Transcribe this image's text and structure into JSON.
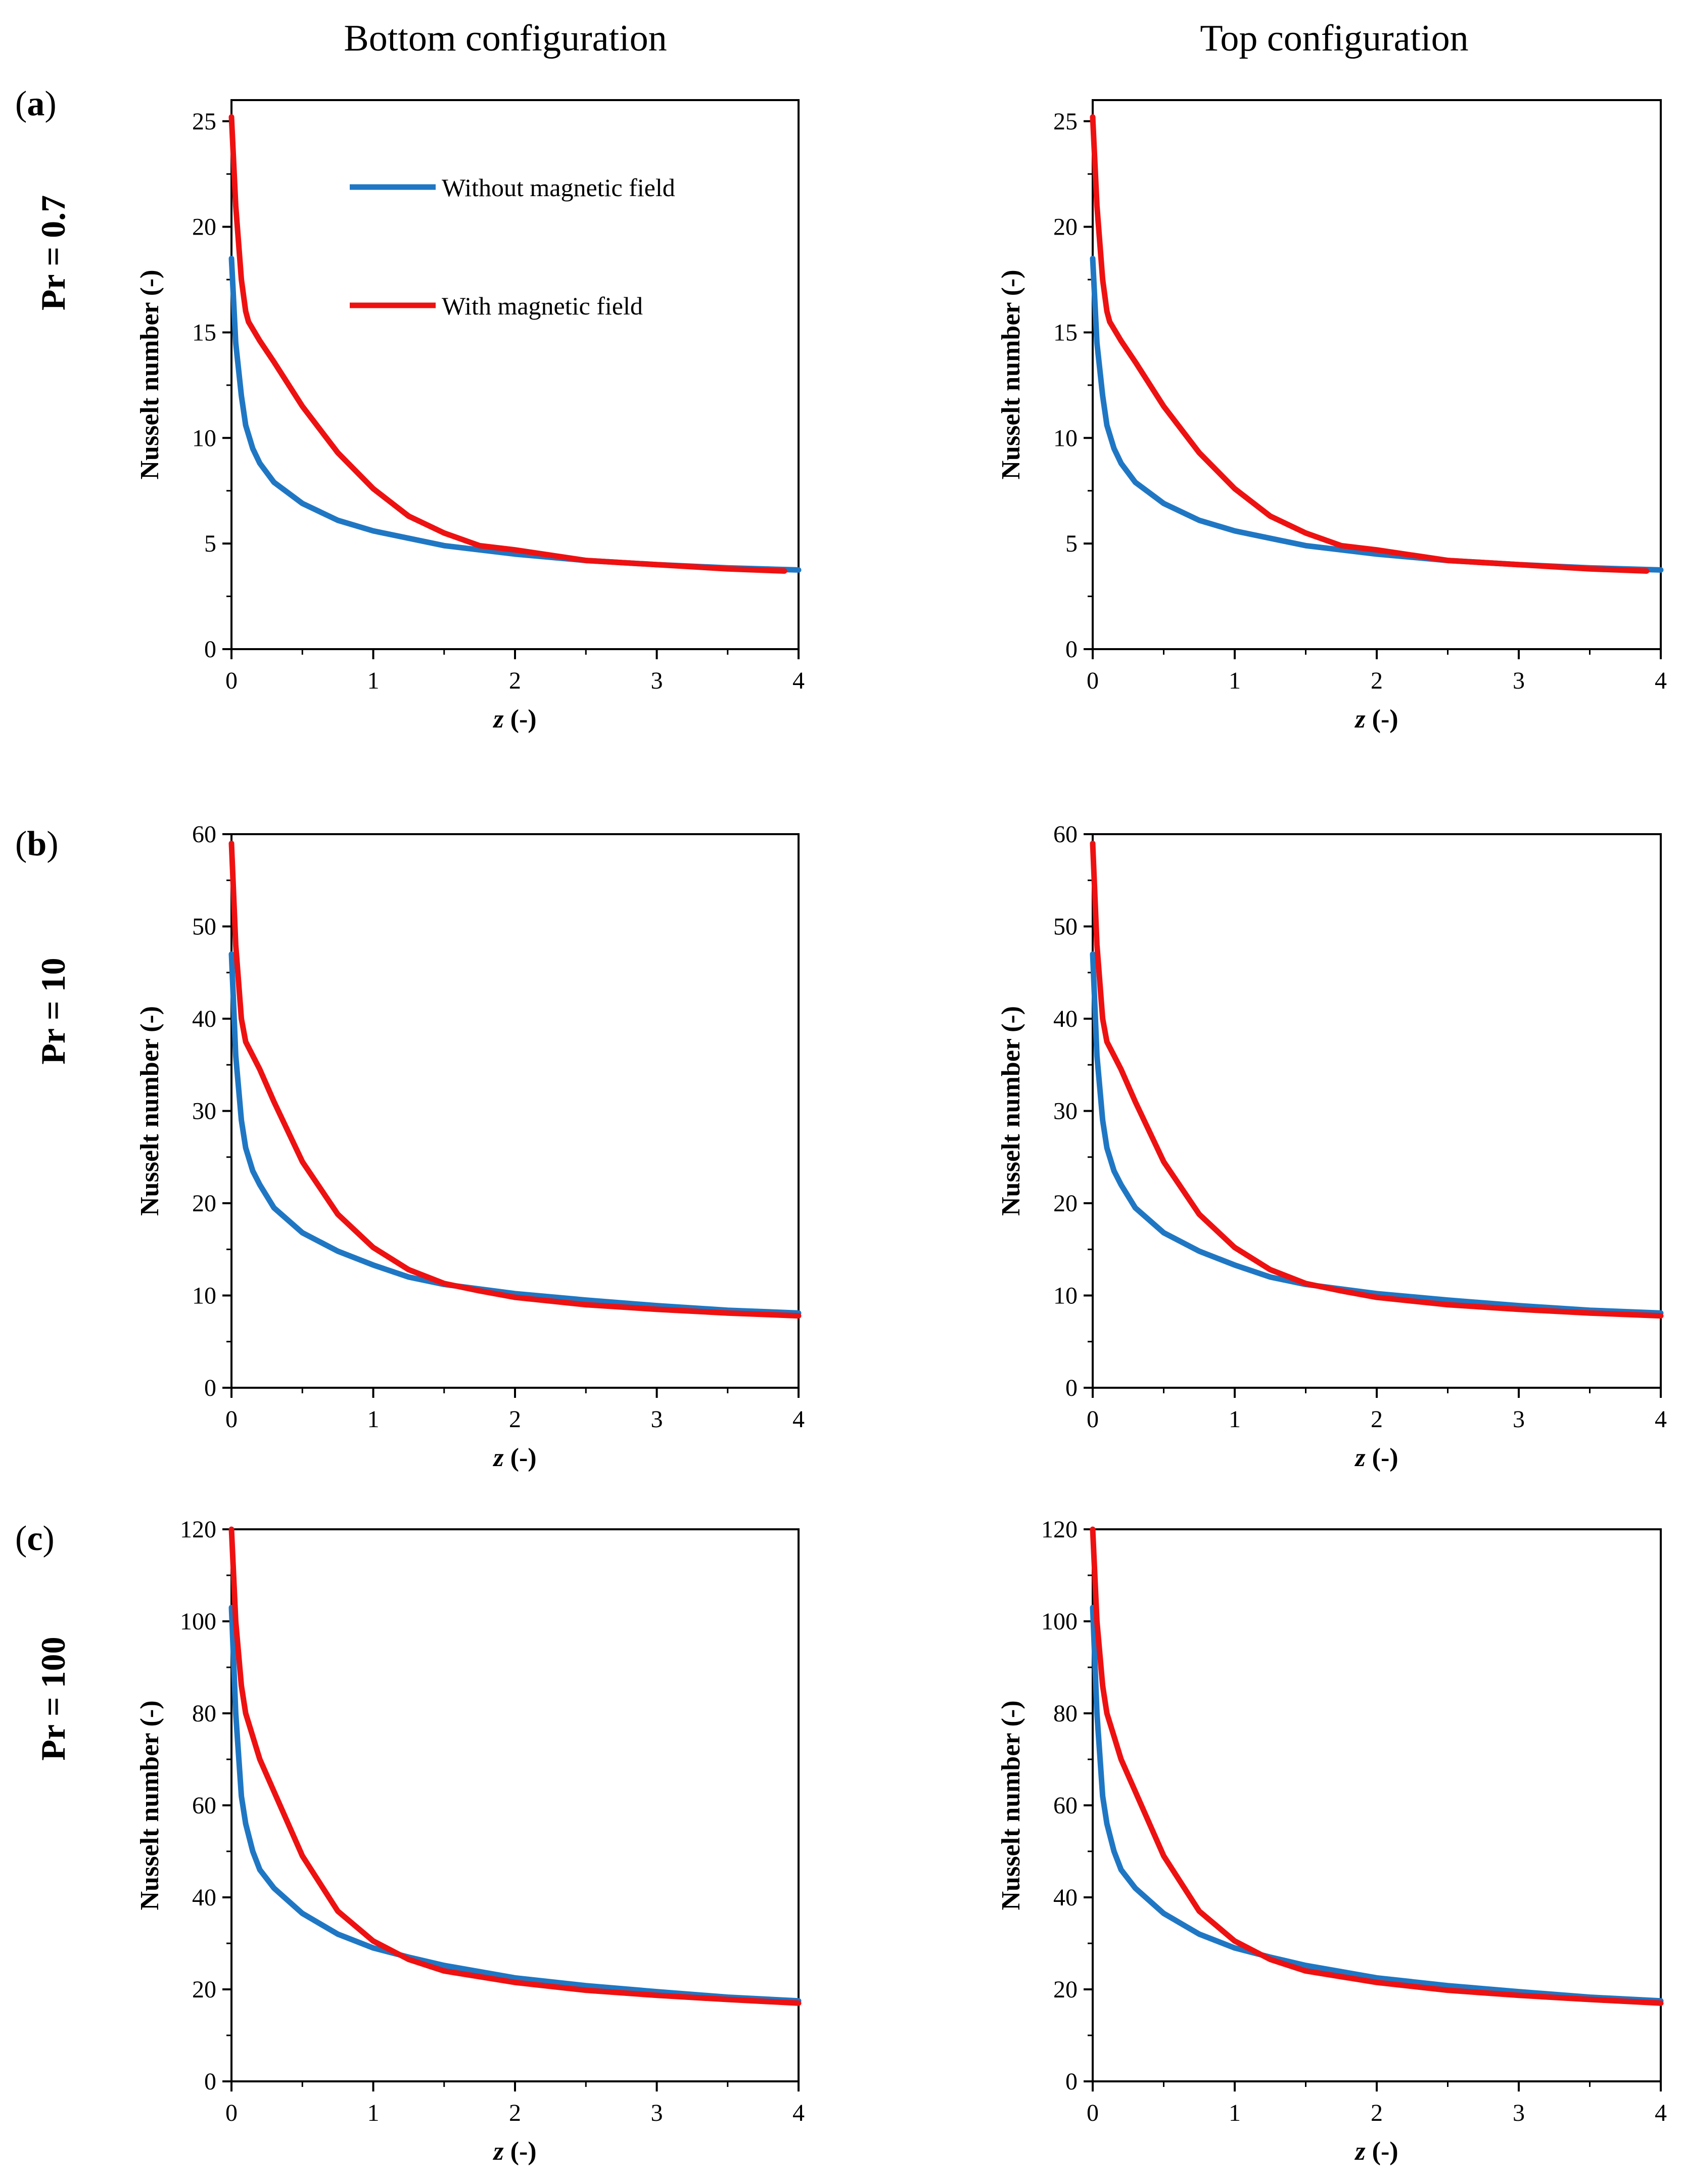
{
  "figure": {
    "column_titles": [
      "Bottom configuration",
      "Top configuration"
    ],
    "rows": [
      {
        "label": "(",
        "label_letter": "a",
        "label_close": ")",
        "pr_label": "Pr = 0.7"
      },
      {
        "label": "(",
        "label_letter": "b",
        "label_close": ")",
        "pr_label": "Pr = 10"
      },
      {
        "label": "(",
        "label_letter": "c",
        "label_close": ")",
        "pr_label": "Pr = 100"
      }
    ],
    "xlabel_italic": "z",
    "xlabel_rest": " (-)",
    "ylabel": "Nusselt number (-)",
    "legend": [
      "Without magnetic field",
      "With magnetic field"
    ]
  },
  "colors": {
    "without": "#1f77c4",
    "with": "#ee1111",
    "axis": "#000000"
  },
  "chart_data": [
    {
      "type": "line",
      "row": 0,
      "col": 0,
      "panel": "(a)",
      "title": "Bottom configuration",
      "pr": "Pr = 0.7",
      "xlabel": "z (-)",
      "ylabel": "Nusselt number (-)",
      "xlim": [
        0,
        4
      ],
      "ylim": [
        0,
        26
      ],
      "xticks": [
        0,
        1,
        2,
        3,
        4
      ],
      "yticks": [
        0,
        5,
        10,
        15,
        20,
        25
      ],
      "yminor": 2.5,
      "xminor": 0.5,
      "series": [
        {
          "name": "Without magnetic field",
          "color_key": "without",
          "x": [
            0,
            0.03,
            0.07,
            0.1,
            0.15,
            0.2,
            0.3,
            0.5,
            0.75,
            1.0,
            1.5,
            2.0,
            2.5,
            3.0,
            3.5,
            4.0
          ],
          "y": [
            18.5,
            14.5,
            12.0,
            10.6,
            9.5,
            8.8,
            7.9,
            6.9,
            6.1,
            5.6,
            4.9,
            4.5,
            4.2,
            4.0,
            3.85,
            3.75
          ]
        },
        {
          "name": "With magnetic field",
          "color_key": "with",
          "x": [
            0,
            0.03,
            0.07,
            0.1,
            0.12,
            0.2,
            0.3,
            0.5,
            0.75,
            1.0,
            1.25,
            1.5,
            1.75,
            2.0,
            2.5,
            3.0,
            3.5,
            3.9
          ],
          "y": [
            25.2,
            21.0,
            17.5,
            16.0,
            15.5,
            14.6,
            13.6,
            11.5,
            9.3,
            7.6,
            6.3,
            5.5,
            4.9,
            4.7,
            4.2,
            4.0,
            3.8,
            3.7
          ]
        }
      ]
    },
    {
      "type": "line",
      "row": 0,
      "col": 1,
      "panel": "(a)",
      "title": "Top configuration",
      "pr": "Pr = 0.7",
      "xlabel": "z (-)",
      "ylabel": "Nusselt number (-)",
      "xlim": [
        0,
        4
      ],
      "ylim": [
        0,
        26
      ],
      "xticks": [
        0,
        1,
        2,
        3,
        4
      ],
      "yticks": [
        0,
        5,
        10,
        15,
        20,
        25
      ],
      "yminor": 2.5,
      "xminor": 0.5,
      "series": [
        {
          "name": "Without magnetic field",
          "color_key": "without",
          "x": [
            0,
            0.03,
            0.07,
            0.1,
            0.15,
            0.2,
            0.3,
            0.5,
            0.75,
            1.0,
            1.5,
            2.0,
            2.5,
            3.0,
            3.5,
            4.0
          ],
          "y": [
            18.5,
            14.5,
            12.0,
            10.6,
            9.5,
            8.8,
            7.9,
            6.9,
            6.1,
            5.6,
            4.9,
            4.5,
            4.2,
            4.0,
            3.85,
            3.75
          ]
        },
        {
          "name": "With magnetic field",
          "color_key": "with",
          "x": [
            0,
            0.03,
            0.07,
            0.1,
            0.12,
            0.2,
            0.3,
            0.5,
            0.75,
            1.0,
            1.25,
            1.5,
            1.75,
            2.0,
            2.5,
            3.0,
            3.5,
            3.9
          ],
          "y": [
            25.2,
            21.0,
            17.5,
            16.0,
            15.5,
            14.6,
            13.6,
            11.5,
            9.3,
            7.6,
            6.3,
            5.5,
            4.9,
            4.7,
            4.2,
            4.0,
            3.8,
            3.7
          ]
        }
      ]
    },
    {
      "type": "line",
      "row": 1,
      "col": 0,
      "panel": "(b)",
      "title": "Bottom configuration",
      "pr": "Pr = 10",
      "xlabel": "z (-)",
      "ylabel": "Nusselt number (-)",
      "xlim": [
        0,
        4
      ],
      "ylim": [
        0,
        60
      ],
      "xticks": [
        0,
        1,
        2,
        3,
        4
      ],
      "yticks": [
        0,
        10,
        20,
        30,
        40,
        50,
        60
      ],
      "yminor": 5,
      "xminor": 0.5,
      "series": [
        {
          "name": "Without magnetic field",
          "color_key": "without",
          "x": [
            0,
            0.03,
            0.07,
            0.1,
            0.15,
            0.2,
            0.3,
            0.5,
            0.75,
            1.0,
            1.25,
            1.5,
            2.0,
            2.5,
            3.0,
            3.5,
            4.0
          ],
          "y": [
            47.0,
            36.0,
            29.0,
            26.0,
            23.5,
            22.0,
            19.5,
            16.8,
            14.8,
            13.3,
            12.0,
            11.2,
            10.2,
            9.5,
            8.9,
            8.4,
            8.1
          ]
        },
        {
          "name": "With magnetic field",
          "color_key": "with",
          "x": [
            0,
            0.03,
            0.07,
            0.1,
            0.15,
            0.2,
            0.3,
            0.5,
            0.75,
            1.0,
            1.25,
            1.5,
            1.75,
            2.0,
            2.5,
            3.0,
            3.5,
            4.0
          ],
          "y": [
            59.0,
            48.0,
            40.0,
            37.5,
            36.0,
            34.5,
            31.0,
            24.5,
            18.8,
            15.2,
            12.8,
            11.3,
            10.5,
            9.8,
            9.0,
            8.5,
            8.1,
            7.8
          ]
        }
      ]
    },
    {
      "type": "line",
      "row": 1,
      "col": 1,
      "panel": "(b)",
      "title": "Top configuration",
      "pr": "Pr = 10",
      "xlabel": "z (-)",
      "ylabel": "Nusselt number (-)",
      "xlim": [
        0,
        4
      ],
      "ylim": [
        0,
        60
      ],
      "xticks": [
        0,
        1,
        2,
        3,
        4
      ],
      "yticks": [
        0,
        10,
        20,
        30,
        40,
        50,
        60
      ],
      "yminor": 5,
      "xminor": 0.5,
      "series": [
        {
          "name": "Without magnetic field",
          "color_key": "without",
          "x": [
            0,
            0.03,
            0.07,
            0.1,
            0.15,
            0.2,
            0.3,
            0.5,
            0.75,
            1.0,
            1.25,
            1.5,
            2.0,
            2.5,
            3.0,
            3.5,
            4.0
          ],
          "y": [
            47.0,
            36.0,
            29.0,
            26.0,
            23.5,
            22.0,
            19.5,
            16.8,
            14.8,
            13.3,
            12.0,
            11.2,
            10.2,
            9.5,
            8.9,
            8.4,
            8.1
          ]
        },
        {
          "name": "With magnetic field",
          "color_key": "with",
          "x": [
            0,
            0.03,
            0.07,
            0.1,
            0.15,
            0.2,
            0.3,
            0.5,
            0.75,
            1.0,
            1.25,
            1.5,
            1.75,
            2.0,
            2.5,
            3.0,
            3.5,
            4.0
          ],
          "y": [
            59.0,
            48.0,
            40.0,
            37.5,
            36.0,
            34.5,
            31.0,
            24.5,
            18.8,
            15.2,
            12.8,
            11.3,
            10.5,
            9.8,
            9.0,
            8.5,
            8.1,
            7.8
          ]
        }
      ]
    },
    {
      "type": "line",
      "row": 2,
      "col": 0,
      "panel": "(c)",
      "title": "Bottom configuration",
      "pr": "Pr = 100",
      "xlabel": "z (-)",
      "ylabel": "Nusselt number (-)",
      "xlim": [
        0,
        4
      ],
      "ylim": [
        0,
        120
      ],
      "xticks": [
        0,
        1,
        2,
        3,
        4
      ],
      "yticks": [
        0,
        20,
        40,
        60,
        80,
        100,
        120
      ],
      "yminor": 10,
      "xminor": 0.5,
      "series": [
        {
          "name": "Without magnetic field",
          "color_key": "without",
          "x": [
            0,
            0.03,
            0.07,
            0.1,
            0.15,
            0.2,
            0.3,
            0.5,
            0.75,
            1.0,
            1.25,
            1.5,
            2.0,
            2.5,
            3.0,
            3.5,
            4.0
          ],
          "y": [
            103.0,
            80.0,
            62.0,
            56.0,
            50.0,
            46.0,
            42.0,
            36.5,
            32.0,
            29.0,
            27.0,
            25.2,
            22.5,
            20.8,
            19.5,
            18.3,
            17.5
          ]
        },
        {
          "name": "With magnetic field",
          "color_key": "with",
          "x": [
            0,
            0.03,
            0.07,
            0.1,
            0.15,
            0.2,
            0.3,
            0.5,
            0.75,
            1.0,
            1.25,
            1.5,
            2.0,
            2.5,
            3.0,
            3.5,
            4.0
          ],
          "y": [
            120.0,
            100.0,
            86.0,
            80.0,
            75.0,
            70.0,
            63.0,
            49.0,
            37.0,
            30.5,
            26.5,
            24.0,
            21.5,
            19.8,
            18.7,
            17.8,
            17.0
          ]
        }
      ]
    },
    {
      "type": "line",
      "row": 2,
      "col": 1,
      "panel": "(c)",
      "title": "Top configuration",
      "pr": "Pr = 100",
      "xlabel": "z (-)",
      "ylabel": "Nusselt number (-)",
      "xlim": [
        0,
        4
      ],
      "ylim": [
        0,
        120
      ],
      "xticks": [
        0,
        1,
        2,
        3,
        4
      ],
      "yticks": [
        0,
        20,
        40,
        60,
        80,
        100,
        120
      ],
      "yminor": 10,
      "xminor": 0.5,
      "series": [
        {
          "name": "Without magnetic field",
          "color_key": "without",
          "x": [
            0,
            0.03,
            0.07,
            0.1,
            0.15,
            0.2,
            0.3,
            0.5,
            0.75,
            1.0,
            1.25,
            1.5,
            2.0,
            2.5,
            3.0,
            3.5,
            4.0
          ],
          "y": [
            103.0,
            80.0,
            62.0,
            56.0,
            50.0,
            46.0,
            42.0,
            36.5,
            32.0,
            29.0,
            27.0,
            25.2,
            22.5,
            20.8,
            19.5,
            18.3,
            17.5
          ]
        },
        {
          "name": "With magnetic field",
          "color_key": "with",
          "x": [
            0,
            0.03,
            0.07,
            0.1,
            0.15,
            0.2,
            0.3,
            0.5,
            0.75,
            1.0,
            1.25,
            1.5,
            2.0,
            2.5,
            3.0,
            3.5,
            4.0
          ],
          "y": [
            120.0,
            100.0,
            86.0,
            80.0,
            75.0,
            70.0,
            63.0,
            49.0,
            37.0,
            30.5,
            26.5,
            24.0,
            21.5,
            19.8,
            18.7,
            17.8,
            17.0
          ]
        }
      ]
    }
  ]
}
